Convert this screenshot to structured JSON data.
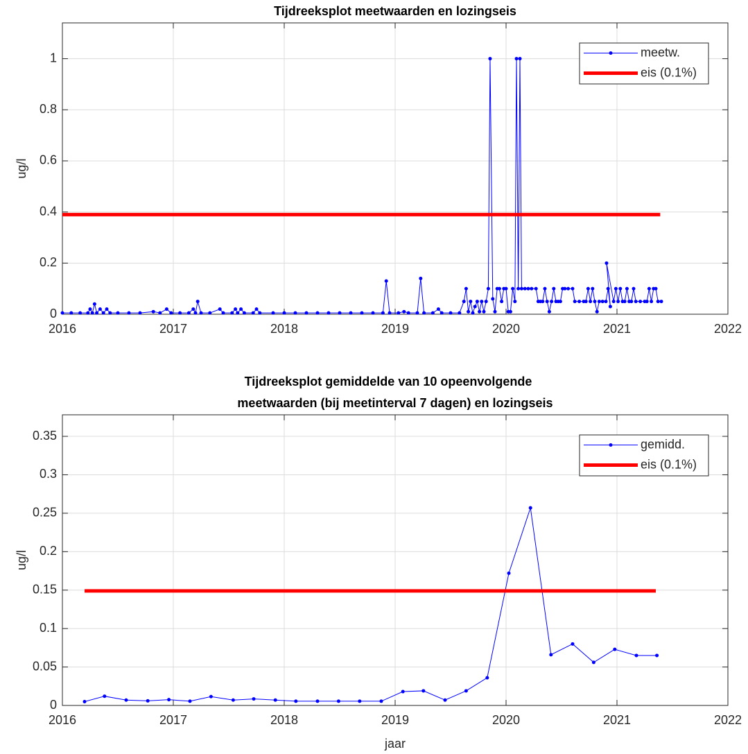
{
  "chart_data": [
    {
      "type": "line",
      "title": [
        "Tijdreeksplot meetwaarden en lozingseis"
      ],
      "ylabel": "ug/l",
      "xlim": [
        2016,
        2022
      ],
      "xticks": [
        2016,
        2017,
        2018,
        2019,
        2020,
        2021,
        2022
      ],
      "ylim": [
        0,
        1.14
      ],
      "yticks": [
        0,
        0.2,
        0.4,
        0.6,
        0.8,
        1
      ],
      "grid": true,
      "legend": "upper right",
      "series": [
        {
          "name": "meetw.",
          "color": "#0000ff",
          "markers": true,
          "x": [
            2016.0,
            2016.08,
            2016.16,
            2016.23,
            2016.25,
            2016.27,
            2016.29,
            2016.31,
            2016.34,
            2016.37,
            2016.4,
            2016.43,
            2016.5,
            2016.6,
            2016.7,
            2016.82,
            2016.88,
            2016.94,
            2016.98,
            2017.06,
            2017.14,
            2017.18,
            2017.2,
            2017.22,
            2017.25,
            2017.33,
            2017.42,
            2017.45,
            2017.53,
            2017.56,
            2017.58,
            2017.61,
            2017.64,
            2017.72,
            2017.75,
            2017.78,
            2017.9,
            2018.0,
            2018.1,
            2018.2,
            2018.3,
            2018.4,
            2018.5,
            2018.6,
            2018.7,
            2018.8,
            2018.89,
            2018.92,
            2018.95,
            2019.03,
            2019.08,
            2019.12,
            2019.2,
            2019.23,
            2019.26,
            2019.34,
            2019.39,
            2019.42,
            2019.5,
            2019.58,
            2019.62,
            2019.64,
            2019.66,
            2019.68,
            2019.7,
            2019.72,
            2019.74,
            2019.76,
            2019.78,
            2019.8,
            2019.82,
            2019.84,
            2019.856,
            2019.88,
            2019.9,
            2019.92,
            2019.94,
            2019.96,
            2019.98,
            2020.0,
            2020.02,
            2020.04,
            2020.06,
            2020.08,
            2020.094,
            2020.11,
            2020.125,
            2020.14,
            2020.17,
            2020.2,
            2020.23,
            2020.27,
            2020.29,
            2020.31,
            2020.33,
            2020.35,
            2020.37,
            2020.39,
            2020.41,
            2020.43,
            2020.45,
            2020.47,
            2020.49,
            2020.51,
            2020.53,
            2020.56,
            2020.6,
            2020.62,
            2020.66,
            2020.7,
            2020.72,
            2020.74,
            2020.76,
            2020.78,
            2020.8,
            2020.82,
            2020.84,
            2020.87,
            2020.9,
            2020.92,
            2020.94,
            2020.906,
            2020.97,
            2020.99,
            2021.01,
            2021.03,
            2021.05,
            2021.07,
            2021.09,
            2021.11,
            2021.13,
            2021.15,
            2021.17,
            2021.21,
            2021.25,
            2021.27,
            2021.29,
            2021.31,
            2021.33,
            2021.35,
            2021.37,
            2021.4
          ],
          "values": [
            0.005,
            0.005,
            0.005,
            0.005,
            0.02,
            0.005,
            0.04,
            0.005,
            0.02,
            0.005,
            0.02,
            0.005,
            0.005,
            0.005,
            0.005,
            0.01,
            0.005,
            0.02,
            0.005,
            0.005,
            0.005,
            0.02,
            0.005,
            0.05,
            0.005,
            0.005,
            0.02,
            0.005,
            0.005,
            0.02,
            0.005,
            0.02,
            0.005,
            0.005,
            0.02,
            0.005,
            0.005,
            0.005,
            0.005,
            0.005,
            0.005,
            0.005,
            0.005,
            0.005,
            0.005,
            0.005,
            0.005,
            0.13,
            0.005,
            0.005,
            0.01,
            0.005,
            0.005,
            0.14,
            0.005,
            0.005,
            0.02,
            0.005,
            0.005,
            0.005,
            0.05,
            0.1,
            0.01,
            0.05,
            0.005,
            0.03,
            0.05,
            0.01,
            0.05,
            0.01,
            0.05,
            0.1,
            1,
            0.06,
            0.01,
            0.1,
            0.1,
            0.05,
            0.1,
            0.1,
            0.01,
            0.01,
            0.1,
            0.05,
            1,
            0.1,
            1,
            0.1,
            0.1,
            0.1,
            0.1,
            0.1,
            0.05,
            0.05,
            0.05,
            0.1,
            0.05,
            0.01,
            0.05,
            0.1,
            0.05,
            0.05,
            0.05,
            0.1,
            0.1,
            0.1,
            0.1,
            0.05,
            0.05,
            0.05,
            0.05,
            0.1,
            0.05,
            0.1,
            0.05,
            0.01,
            0.05,
            0.05,
            0.05,
            0.1,
            0.03,
            0.2,
            0.05,
            0.1,
            0.05,
            0.1,
            0.05,
            0.05,
            0.1,
            0.05,
            0.05,
            0.1,
            0.05,
            0.05,
            0.05,
            0.05,
            0.1,
            0.05,
            0.1,
            0.1,
            0.05,
            0.05
          ]
        },
        {
          "name": "eis (0.1%)",
          "color": "#ff0000",
          "markers": false,
          "x": [
            2016,
            2021.39
          ],
          "values": [
            0.39,
            0.39
          ]
        }
      ]
    },
    {
      "type": "line",
      "title": [
        "Tijdreeksplot gemiddelde van 10 opeenvolgende",
        "meetwaarden (bij meetinterval 7 dagen) en lozingseis"
      ],
      "ylabel": "ug/l",
      "xlabel": "jaar",
      "xlim": [
        2016,
        2022
      ],
      "xticks": [
        2016,
        2017,
        2018,
        2019,
        2020,
        2021,
        2022
      ],
      "ylim": [
        0,
        0.378
      ],
      "yticks": [
        0,
        0.05,
        0.1,
        0.15,
        0.2,
        0.25,
        0.3,
        0.35
      ],
      "grid": true,
      "legend": "upper right",
      "series": [
        {
          "name": "gemidd.",
          "color": "#0000ff",
          "markers": true,
          "x": [
            2016.2,
            2016.38,
            2016.575,
            2016.77,
            2016.96,
            2017.15,
            2017.34,
            2017.54,
            2017.725,
            2017.92,
            2018.105,
            2018.3,
            2018.49,
            2018.68,
            2018.875,
            2019.07,
            2019.255,
            2019.45,
            2019.64,
            2019.83,
            2020.025,
            2020.22,
            2020.405,
            2020.6,
            2020.79,
            2020.98,
            2021.175,
            2021.36
          ],
          "values": [
            0.005,
            0.012,
            0.007,
            0.006,
            0.0075,
            0.0055,
            0.0115,
            0.007,
            0.0085,
            0.007,
            0.0055,
            0.0055,
            0.0055,
            0.0055,
            0.0055,
            0.018,
            0.019,
            0.007,
            0.019,
            0.036,
            0.172,
            0.257,
            0.066,
            0.08,
            0.056,
            0.073,
            0.065,
            0.065
          ]
        },
        {
          "name": "eis (0.1%)",
          "color": "#ff0000",
          "markers": false,
          "x": [
            2016.2,
            2021.35
          ],
          "values": [
            0.149,
            0.149
          ]
        }
      ]
    }
  ]
}
